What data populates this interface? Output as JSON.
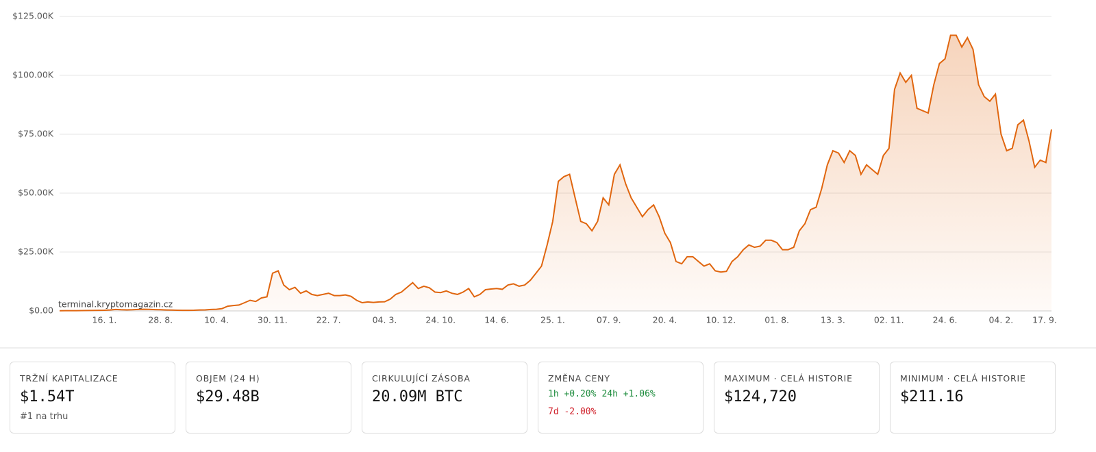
{
  "chart_data": {
    "type": "area",
    "color": "#e0660f",
    "watermark": "terminal.kryptomagazin.cz",
    "ylim": [
      0,
      125000
    ],
    "yticks": [
      {
        "value": 0,
        "label": "$0.00"
      },
      {
        "value": 25000,
        "label": "$25.00K"
      },
      {
        "value": 50000,
        "label": "$50.00K"
      },
      {
        "value": 75000,
        "label": "$75.00K"
      },
      {
        "value": 100000,
        "label": "$100.00K"
      },
      {
        "value": 125000,
        "label": "$125.00K"
      }
    ],
    "grid": true,
    "categories": [
      null,
      null,
      null,
      null,
      null,
      null,
      null,
      null,
      "16. 1.",
      null,
      null,
      null,
      null,
      null,
      null,
      null,
      null,
      null,
      "28. 8.",
      null,
      null,
      null,
      null,
      null,
      null,
      null,
      null,
      null,
      "10. 4.",
      null,
      null,
      null,
      null,
      null,
      null,
      null,
      null,
      null,
      "30. 11.",
      null,
      null,
      null,
      null,
      null,
      null,
      null,
      null,
      null,
      "22. 7.",
      null,
      null,
      null,
      null,
      null,
      null,
      null,
      null,
      null,
      "04. 3.",
      null,
      null,
      null,
      null,
      null,
      null,
      null,
      null,
      null,
      "24. 10.",
      null,
      null,
      null,
      null,
      null,
      null,
      null,
      null,
      null,
      "14. 6.",
      null,
      null,
      null,
      null,
      null,
      null,
      null,
      null,
      null,
      "25. 1.",
      null,
      null,
      null,
      null,
      null,
      null,
      null,
      null,
      null,
      "07. 9.",
      null,
      null,
      null,
      null,
      null,
      null,
      null,
      null,
      null,
      "20. 4.",
      null,
      null,
      null,
      null,
      null,
      null,
      null,
      null,
      null,
      "10. 12.",
      null,
      null,
      null,
      null,
      null,
      null,
      null,
      null,
      null,
      "01. 8.",
      null,
      null,
      null,
      null,
      null,
      null,
      null,
      null,
      null,
      "13. 3.",
      null,
      null,
      null,
      null,
      null,
      null,
      null,
      null,
      null,
      "02. 11.",
      null,
      null,
      null,
      null,
      null,
      null,
      null,
      null,
      null,
      "24. 6.",
      null,
      null,
      null,
      null,
      null,
      null,
      null,
      null,
      null,
      "04. 2.",
      null,
      null,
      null,
      null,
      null,
      null,
      null,
      null,
      "17. 9."
    ],
    "values": [
      100,
      110,
      120,
      130,
      150,
      180,
      200,
      250,
      300,
      400,
      600,
      500,
      450,
      480,
      600,
      700,
      650,
      550,
      480,
      400,
      350,
      300,
      250,
      270,
      300,
      400,
      450,
      600,
      700,
      1000,
      2000,
      2300,
      2500,
      3500,
      4500,
      4000,
      5500,
      6000,
      16000,
      17000,
      11000,
      9000,
      10000,
      7500,
      8500,
      7000,
      6500,
      7000,
      7500,
      6500,
      6500,
      6800,
      6200,
      4500,
      3500,
      3800,
      3600,
      3800,
      3900,
      5000,
      7000,
      8000,
      10000,
      12000,
      9500,
      10500,
      9800,
      8000,
      7800,
      8500,
      7500,
      7000,
      8000,
      9500,
      6000,
      7000,
      9000,
      9300,
      9500,
      9200,
      11000,
      11500,
      10500,
      11000,
      13000,
      16000,
      19000,
      28000,
      38000,
      55000,
      57000,
      58000,
      48000,
      38000,
      37000,
      34000,
      38000,
      48000,
      45000,
      58000,
      62000,
      54000,
      48000,
      44000,
      40000,
      43000,
      45000,
      40000,
      33000,
      29000,
      21000,
      20000,
      23000,
      23000,
      21000,
      19000,
      20000,
      17000,
      16500,
      16800,
      21000,
      23000,
      26000,
      28000,
      27000,
      27500,
      30000,
      30000,
      29000,
      26000,
      26000,
      27000,
      34000,
      37000,
      43000,
      44000,
      52000,
      62000,
      68000,
      67000,
      63000,
      68000,
      66000,
      58000,
      62000,
      60000,
      58000,
      66000,
      69000,
      94000,
      101000,
      97000,
      100000,
      86000,
      85000,
      84000,
      96000,
      105000,
      107000,
      117000,
      117000,
      112000,
      116000,
      111000,
      96000,
      91000,
      89000,
      92000,
      75000,
      68000,
      69000,
      79000,
      81000,
      72000,
      61000,
      64000,
      63000,
      77000
    ]
  },
  "cards": [
    {
      "label": "TRŽNÍ KAPITALIZACE",
      "value": "$1.54T",
      "sub": "#1 na trhu"
    },
    {
      "label": "OBJEM (24 H)",
      "value": "$29.48B"
    },
    {
      "label": "CIRKULUJÍCÍ ZÁSOBA",
      "value": "20.09M BTC"
    },
    {
      "label": "ZMĚNA CENY",
      "changes": [
        [
          {
            "text": "1h +0.20%",
            "color": "#1a8a3a"
          },
          {
            "text": "24h +1.06%",
            "color": "#1a8a3a"
          }
        ],
        [
          {
            "text": "7d -2.00%",
            "color": "#d0202a"
          }
        ]
      ]
    },
    {
      "label": "MAXIMUM · CELÁ HISTORIE",
      "value": "$124,720"
    },
    {
      "label": "MINIMUM · CELÁ HISTORIE",
      "value": "$211.16"
    }
  ]
}
